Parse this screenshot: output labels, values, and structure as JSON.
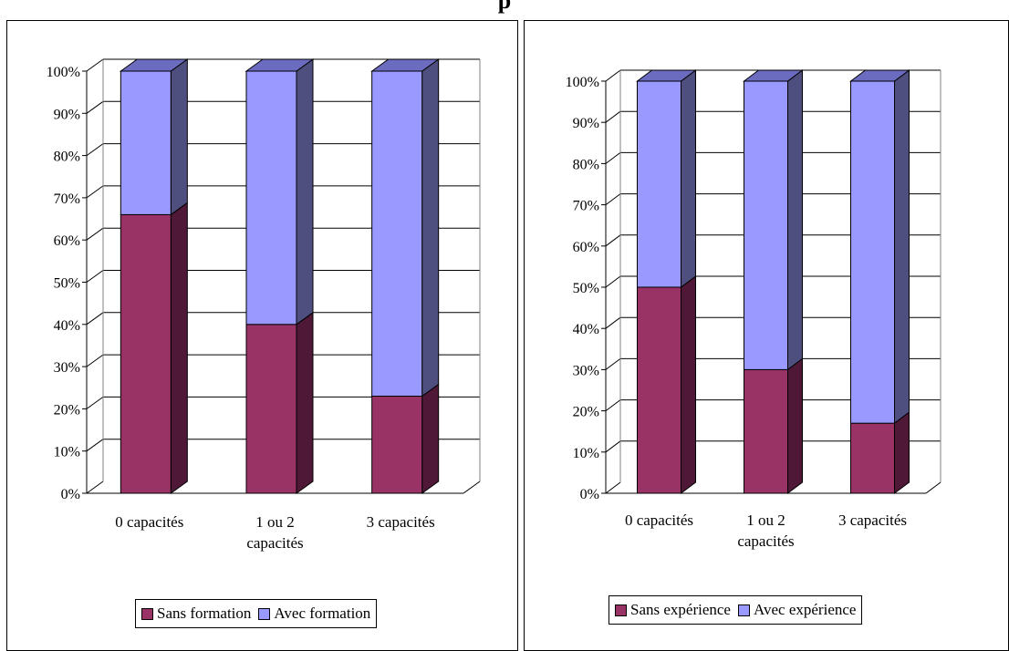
{
  "page": {
    "title": "p"
  },
  "colors": {
    "sans_front": "#993366",
    "sans_side": "#4f1837",
    "avec_front": "#9999ff",
    "avec_side": "#4f4f7f",
    "top": "#6b6bc0",
    "grid": "#000000"
  },
  "chart_data": [
    {
      "type": "bar",
      "stacked": true,
      "percent": true,
      "categories": [
        "0 capacités",
        "1 ou 2|capacités",
        "3 capacités"
      ],
      "series": [
        {
          "name": "Sans formation",
          "values": [
            66,
            40,
            23
          ]
        },
        {
          "name": "Avec formation",
          "values": [
            34,
            60,
            77
          ]
        }
      ],
      "y_ticks": [
        "0%",
        "10%",
        "20%",
        "30%",
        "40%",
        "50%",
        "60%",
        "70%",
        "80%",
        "90%",
        "100%"
      ],
      "ylim": [
        0,
        100
      ],
      "grid": true,
      "legend_placement": "bottom"
    },
    {
      "type": "bar",
      "stacked": true,
      "percent": true,
      "categories": [
        "0 capacités",
        "1 ou 2|capacités",
        "3 capacités"
      ],
      "series": [
        {
          "name": "Sans expérience",
          "values": [
            50,
            30,
            17
          ]
        },
        {
          "name": "Avec expérience",
          "values": [
            50,
            70,
            83
          ]
        }
      ],
      "y_ticks": [
        "0%",
        "10%",
        "20%",
        "30%",
        "40%",
        "50%",
        "60%",
        "70%",
        "80%",
        "90%",
        "100%"
      ],
      "ylim": [
        0,
        100
      ],
      "grid": true,
      "legend_placement": "bottom"
    }
  ]
}
